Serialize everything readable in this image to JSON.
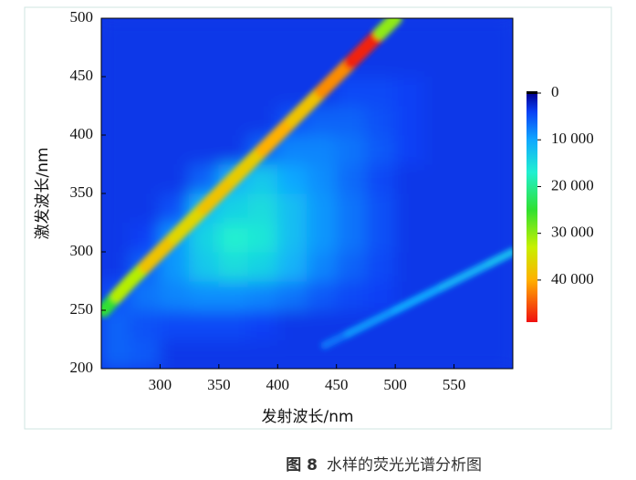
{
  "chart_data": {
    "type": "heatmap",
    "figure_label": "图 8",
    "title": "水样的荧光光谱分析图",
    "x_label": "发射波长/nm",
    "y_label": "激发波长/nm",
    "xlim": [
      250,
      600
    ],
    "ylim": [
      200,
      500
    ],
    "xticks": [
      300,
      350,
      400,
      450,
      500,
      550
    ],
    "yticks": [
      200,
      250,
      300,
      350,
      400,
      450,
      500
    ],
    "x": [
      262.5,
      287.5,
      312.5,
      337.5,
      362.5,
      387.5,
      412.5,
      437.5,
      462.5,
      487.5,
      512.5,
      537.5,
      562.5,
      587.5
    ],
    "y": [
      212.5,
      237.5,
      262.5,
      287.5,
      312.5,
      337.5,
      362.5,
      387.5,
      412.5,
      437.5,
      462.5,
      487.5
    ],
    "z": [
      [
        6000,
        5500,
        3500,
        3500,
        3500,
        3500,
        3500,
        3500,
        3500,
        3500,
        3500,
        3500,
        3500,
        3500
      ],
      [
        6000,
        5000,
        4500,
        4500,
        4500,
        4000,
        3500,
        3500,
        3500,
        3500,
        3500,
        3500,
        3500,
        3500
      ],
      [
        5000,
        7000,
        8000,
        8500,
        8500,
        8000,
        7000,
        5500,
        4500,
        4000,
        3500,
        3500,
        3500,
        3500
      ],
      [
        3500,
        6000,
        9000,
        13000,
        15000,
        14000,
        11000,
        8000,
        6000,
        4500,
        3500,
        3500,
        3500,
        3500
      ],
      [
        3500,
        4000,
        9000,
        14000,
        17000,
        16000,
        12000,
        9000,
        7000,
        5000,
        3500,
        3500,
        3500,
        3500
      ],
      [
        3500,
        3500,
        5000,
        12000,
        14000,
        15000,
        12000,
        9000,
        7000,
        5000,
        3500,
        3500,
        3500,
        3500
      ],
      [
        3500,
        3500,
        3500,
        6000,
        11000,
        13000,
        10000,
        8500,
        6500,
        4500,
        3500,
        3500,
        3500,
        3500
      ],
      [
        3500,
        3500,
        3500,
        3500,
        3500,
        6000,
        8000,
        8000,
        7000,
        5500,
        4000,
        3500,
        3500,
        3500
      ],
      [
        3500,
        3500,
        3500,
        3500,
        3500,
        3500,
        5000,
        6000,
        6000,
        5000,
        4000,
        3500,
        3500,
        3500
      ],
      [
        3500,
        3500,
        3500,
        3500,
        3500,
        3500,
        3500,
        3500,
        4500,
        4500,
        4000,
        3500,
        3500,
        3500
      ],
      [
        3500,
        3500,
        3500,
        3500,
        3500,
        3500,
        3500,
        3500,
        3500,
        3500,
        3500,
        3500,
        3500,
        3500
      ],
      [
        3500,
        3500,
        3500,
        3500,
        3500,
        3500,
        3500,
        3500,
        3500,
        3500,
        3500,
        3500,
        3500,
        3500
      ]
    ],
    "ridges": [
      {
        "x": [
          252,
          275,
          300,
          325,
          350,
          375,
          400,
          425,
          450,
          475,
          500
        ],
        "y": [
          250,
          275,
          300,
          325,
          350,
          375,
          400,
          425,
          450,
          475,
          500
        ],
        "values": [
          25000,
          32000,
          38000,
          36000,
          38000,
          37000,
          40000,
          38000,
          42000,
          48000,
          30000
        ]
      },
      {
        "x": [
          440,
          480,
          520,
          560,
          600
        ],
        "y": [
          220,
          240,
          260,
          280,
          300
        ],
        "values": [
          7000,
          9000,
          10000,
          11000,
          12000
        ]
      }
    ],
    "clim": [
      0,
      49000
    ],
    "colorbar_ticks": [
      0,
      {
        "value": 10000,
        "label": "10 000"
      },
      {
        "value": 20000,
        "label": "20 000"
      },
      {
        "value": 30000,
        "label": "30 000"
      },
      {
        "value": 40000,
        "label": "40 000"
      }
    ],
    "colorscale": [
      {
        "value": 0,
        "color": "#000090"
      },
      {
        "value": 4000,
        "color": "#0a40f5"
      },
      {
        "value": 10000,
        "color": "#10a8ff"
      },
      {
        "value": 17000,
        "color": "#20f0d0"
      },
      {
        "value": 25000,
        "color": "#30e030"
      },
      {
        "value": 33000,
        "color": "#c8f000"
      },
      {
        "value": 40000,
        "color": "#ffb000"
      },
      {
        "value": 49000,
        "color": "#f01010"
      }
    ]
  }
}
